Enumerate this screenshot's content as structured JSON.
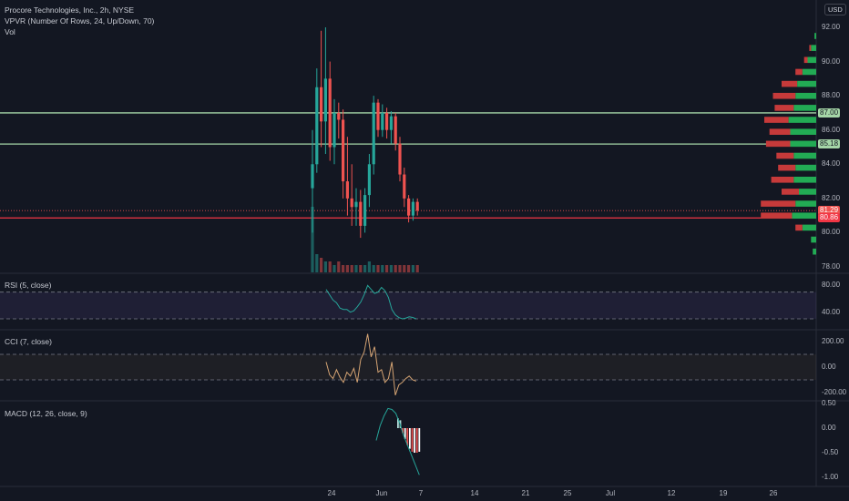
{
  "header": {
    "title": "Procore Technologies, Inc., 2h, NYSE",
    "vpvr_label": "VPVR (Number Of Rows, 24, Up/Down, 70)",
    "vol_label": "Vol",
    "currency": "USD"
  },
  "price_axis": {
    "ticks": [
      "92.00",
      "90.00",
      "88.00",
      "86.00",
      "84.00",
      "82.00",
      "80.00",
      "78.00"
    ],
    "tick_values": [
      92,
      90,
      88,
      86,
      84,
      82,
      80,
      78
    ]
  },
  "price_tags": [
    {
      "label": "87.00",
      "value": 87.0,
      "color": "#a5d6a7",
      "text_color": "#131722"
    },
    {
      "label": "85.18",
      "value": 85.18,
      "color": "#a5d6a7",
      "text_color": "#131722"
    },
    {
      "label": "81.29",
      "value": 81.29,
      "color": "#ef5350",
      "text_color": "#ffffff"
    },
    {
      "label": "80.86",
      "value": 80.86,
      "color": "#f23645",
      "text_color": "#ffffff"
    }
  ],
  "horizontal_lines": [
    {
      "value": 87.0,
      "color": "#a5d6a7"
    },
    {
      "value": 85.18,
      "color": "#a5d6a7"
    },
    {
      "value": 80.86,
      "color": "#f23645"
    }
  ],
  "rsi": {
    "label": "RSI (5, close)",
    "ticks": [
      "80.00",
      "40.00"
    ],
    "tick_values": [
      80,
      40
    ],
    "band": [
      70,
      30
    ],
    "color": "#26a69a",
    "values": [
      74,
      66,
      58,
      54,
      46,
      44,
      44,
      40,
      42,
      48,
      55,
      66,
      80,
      74,
      68,
      70,
      77,
      72,
      62,
      44,
      36,
      32,
      30,
      31,
      33,
      32,
      30
    ]
  },
  "cci": {
    "label": "CCI (7, close)",
    "ticks": [
      "200.00",
      "0.00",
      "-200.00"
    ],
    "tick_values": [
      200,
      0,
      -200
    ],
    "band": [
      100,
      -100
    ],
    "color": "#d4a373",
    "values": [
      40,
      -60,
      -90,
      -20,
      -80,
      -120,
      -40,
      -70,
      -10,
      -120,
      60,
      120,
      260,
      80,
      160,
      -40,
      -20,
      -120,
      -90,
      40,
      -220,
      -140,
      -120,
      -90,
      -70,
      -100,
      -110
    ]
  },
  "macd": {
    "label": "MACD (12, 26, close, 9)",
    "ticks": [
      "0.50",
      "0.00",
      "-0.50",
      "-1.00"
    ],
    "tick_values": [
      0.5,
      0,
      -0.5,
      -1.0
    ],
    "line_color": "#26a69a",
    "line_values": [
      -0.25,
      0.05,
      0.25,
      0.4,
      0.38,
      0.3,
      0.1,
      -0.15,
      -0.35,
      -0.55,
      -0.75,
      -0.95
    ],
    "histogram": [
      0.2,
      0.16,
      -0.1,
      -0.22,
      -0.35,
      -0.42,
      -0.48,
      -0.5,
      -0.5,
      -0.48
    ]
  },
  "time_axis": {
    "labels": [
      "24",
      "Jun",
      "7",
      "14",
      "21",
      "25",
      "Jul",
      "12",
      "19",
      "26"
    ]
  },
  "chart_data": {
    "type": "candlestick",
    "title": "Procore Technologies, Inc., 2h, NYSE",
    "ylim": [
      77,
      93
    ],
    "candles": [
      {
        "o": 82.6,
        "h": 86.0,
        "l": 80.0,
        "c": 84.0
      },
      {
        "o": 84.0,
        "h": 89.6,
        "l": 83.5,
        "c": 88.5
      },
      {
        "o": 88.5,
        "h": 91.8,
        "l": 85.0,
        "c": 86.5
      },
      {
        "o": 86.5,
        "h": 92.0,
        "l": 84.6,
        "c": 89.0
      },
      {
        "o": 89.0,
        "h": 90.0,
        "l": 84.2,
        "c": 85.0
      },
      {
        "o": 85.0,
        "h": 87.8,
        "l": 84.0,
        "c": 87.0
      },
      {
        "o": 87.0,
        "h": 87.6,
        "l": 85.5,
        "c": 86.6
      },
      {
        "o": 86.6,
        "h": 87.2,
        "l": 82.0,
        "c": 83.0
      },
      {
        "o": 83.0,
        "h": 85.6,
        "l": 81.0,
        "c": 82.0
      },
      {
        "o": 82.0,
        "h": 84.0,
        "l": 80.4,
        "c": 81.5
      },
      {
        "o": 81.5,
        "h": 82.6,
        "l": 80.4,
        "c": 81.8
      },
      {
        "o": 81.8,
        "h": 82.5,
        "l": 79.7,
        "c": 80.4
      },
      {
        "o": 80.4,
        "h": 82.6,
        "l": 80.0,
        "c": 82.2
      },
      {
        "o": 82.2,
        "h": 84.6,
        "l": 81.5,
        "c": 84.0
      },
      {
        "o": 84.0,
        "h": 88.0,
        "l": 83.4,
        "c": 87.6
      },
      {
        "o": 87.6,
        "h": 87.8,
        "l": 85.6,
        "c": 86.0
      },
      {
        "o": 86.0,
        "h": 87.5,
        "l": 85.6,
        "c": 87.0
      },
      {
        "o": 87.0,
        "h": 87.3,
        "l": 85.5,
        "c": 86.0
      },
      {
        "o": 86.0,
        "h": 87.1,
        "l": 85.2,
        "c": 86.8
      },
      {
        "o": 86.8,
        "h": 87.0,
        "l": 84.8,
        "c": 85.2
      },
      {
        "o": 85.2,
        "h": 85.6,
        "l": 83.0,
        "c": 83.4
      },
      {
        "o": 83.4,
        "h": 83.8,
        "l": 81.5,
        "c": 82.0
      },
      {
        "o": 82.0,
        "h": 82.2,
        "l": 80.6,
        "c": 81.0
      },
      {
        "o": 81.0,
        "h": 82.0,
        "l": 80.7,
        "c": 81.8
      },
      {
        "o": 81.8,
        "h": 82.0,
        "l": 81.0,
        "c": 81.29
      }
    ],
    "volume": [
      18,
      5,
      4,
      3,
      3,
      2,
      3,
      2,
      2,
      2,
      2,
      2,
      2,
      3,
      2,
      2,
      2,
      2,
      2,
      2,
      2,
      2,
      2,
      2,
      2
    ],
    "volume_profile": [
      {
        "price": 91.5,
        "up": 1,
        "down": 0
      },
      {
        "price": 90.8,
        "up": 3,
        "down": 1
      },
      {
        "price": 90.1,
        "up": 5,
        "down": 2
      },
      {
        "price": 89.4,
        "up": 8,
        "down": 4
      },
      {
        "price": 88.7,
        "up": 11,
        "down": 9
      },
      {
        "price": 88.0,
        "up": 12,
        "down": 13
      },
      {
        "price": 87.3,
        "up": 13,
        "down": 11
      },
      {
        "price": 86.6,
        "up": 16,
        "down": 14
      },
      {
        "price": 85.9,
        "up": 15,
        "down": 12
      },
      {
        "price": 85.2,
        "up": 15,
        "down": 14
      },
      {
        "price": 84.5,
        "up": 13,
        "down": 10
      },
      {
        "price": 83.8,
        "up": 12,
        "down": 10
      },
      {
        "price": 83.1,
        "up": 13,
        "down": 13
      },
      {
        "price": 82.4,
        "up": 10,
        "down": 10
      },
      {
        "price": 81.7,
        "up": 12,
        "down": 20
      },
      {
        "price": 81.0,
        "up": 14,
        "down": 18
      },
      {
        "price": 80.3,
        "up": 8,
        "down": 4
      },
      {
        "price": 79.6,
        "up": 3,
        "down": 0
      },
      {
        "price": 78.9,
        "up": 2,
        "down": 0
      }
    ]
  }
}
